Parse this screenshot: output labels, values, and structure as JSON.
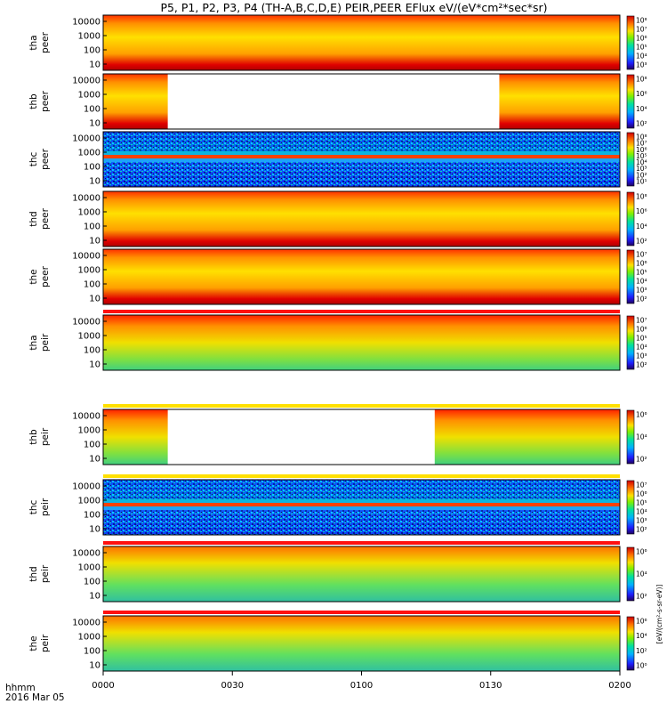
{
  "title": "P5, P1, P2, P3, P4 (TH-A,B,C,D,E) PEIR,PEER EFlux eV/(eV*cm²*sec*sr)",
  "x_axis": {
    "corner_label_1": "hhmm",
    "corner_label_2": "2016 Mar 05",
    "ticks": [
      "0000",
      "0030",
      "0100",
      "0130",
      "0200"
    ]
  },
  "colorbar_units": "[eV/(cm²-s-sr-eV)]",
  "colors": {
    "fill_white": "#ffffff",
    "palette": [
      "#1e1eff",
      "#00a0ff",
      "#00e0c0",
      "#20e060",
      "#e0f000",
      "#ffd000",
      "#ff8000",
      "#ff2000",
      "#d00000"
    ]
  },
  "chart_data": {
    "type": "heatmap",
    "x_range": [
      "00:00",
      "02:00"
    ],
    "y_scale": "log",
    "panels": [
      {
        "id": "tha_peer",
        "label_1": "tha",
        "label_2": "peer",
        "y_ticks": [
          "10000",
          "1000",
          "100",
          "10"
        ],
        "cbar_ticks": [
          "10⁸",
          "10⁷",
          "10⁶",
          "10⁵",
          "10⁴",
          "10³"
        ]
      },
      {
        "id": "thb_peer",
        "label_1": "thb",
        "label_2": "peer",
        "y_ticks": [
          "10000",
          "1000",
          "100",
          "10"
        ],
        "cbar_ticks": [
          "10⁸",
          "10⁶",
          "10⁴",
          "10²"
        ],
        "data_gap_hhmm": [
          "0015",
          "0132"
        ]
      },
      {
        "id": "thc_peer",
        "label_1": "thc",
        "label_2": "peer",
        "y_ticks": [
          "10000",
          "1000",
          "100",
          "10"
        ],
        "cbar_ticks": [
          "10⁸",
          "10⁷",
          "10⁶",
          "10⁵",
          "10⁴",
          "10³",
          "10²",
          "10¹"
        ]
      },
      {
        "id": "thd_peer",
        "label_1": "thd",
        "label_2": "peer",
        "y_ticks": [
          "10000",
          "1000",
          "100",
          "10"
        ],
        "cbar_ticks": [
          "10⁸",
          "10⁶",
          "10⁴",
          "10²"
        ]
      },
      {
        "id": "the_peer",
        "label_1": "the",
        "label_2": "peer",
        "y_ticks": [
          "10000",
          "1000",
          "100",
          "10"
        ],
        "cbar_ticks": [
          "10⁷",
          "10⁶",
          "10⁵",
          "10⁴",
          "10³",
          "10²"
        ]
      },
      {
        "id": "tha_peir",
        "label_1": "tha",
        "label_2": "peir",
        "y_ticks": [
          "10000",
          "1000",
          "100",
          "10"
        ],
        "cbar_ticks": [
          "10⁷",
          "10⁶",
          "10⁵",
          "10⁴",
          "10³",
          "10²"
        ]
      },
      {
        "id": "thb_peir",
        "label_1": "thb",
        "label_2": "peir",
        "y_ticks": [
          "10000",
          "1000",
          "100",
          "10"
        ],
        "cbar_ticks": [
          "10⁶",
          "10⁴",
          "10²"
        ],
        "data_gap_hhmm": [
          "0015",
          "0117"
        ]
      },
      {
        "id": "thc_peir",
        "label_1": "thc",
        "label_2": "peir",
        "y_ticks": [
          "10000",
          "1000",
          "100",
          "10"
        ],
        "cbar_ticks": [
          "10⁷",
          "10⁶",
          "10⁵",
          "10⁴",
          "10³",
          "10²"
        ]
      },
      {
        "id": "thd_peir",
        "label_1": "thd",
        "label_2": "peir",
        "y_ticks": [
          "10000",
          "1000",
          "100",
          "10"
        ],
        "cbar_ticks": [
          "10⁶",
          "10⁴",
          "10²"
        ]
      },
      {
        "id": "the_peir",
        "label_1": "the",
        "label_2": "peir",
        "y_ticks": [
          "10000",
          "1000",
          "100",
          "10"
        ],
        "cbar_ticks": [
          "10⁶",
          "10⁴",
          "10²",
          "10⁰"
        ]
      }
    ]
  }
}
